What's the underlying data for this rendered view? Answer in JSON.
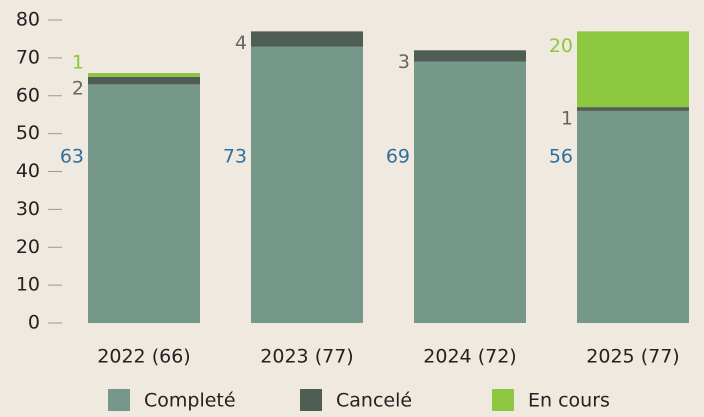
{
  "chart_data": {
    "type": "stacked_bar",
    "categories": [
      "2022 (66)",
      "2023 (77)",
      "2024 (72)",
      "2025 (77)"
    ],
    "series": [
      {
        "name": "Completé",
        "color": "#76988b",
        "label_color": "#2f6f9f",
        "values": [
          63,
          73,
          69,
          56
        ]
      },
      {
        "name": "Cancelé",
        "color": "#4f5d55",
        "label_color": "#666666",
        "values": [
          2,
          4,
          3,
          1
        ]
      },
      {
        "name": "En cours",
        "color": "#8dc63f",
        "label_color": "#8dc63f",
        "values": [
          1,
          null,
          null,
          20
        ]
      }
    ],
    "ylim": [
      0,
      80
    ],
    "yticks": [
      0,
      10,
      20,
      30,
      40,
      50,
      60,
      70,
      80
    ],
    "grid": false,
    "legend": "bottom"
  }
}
